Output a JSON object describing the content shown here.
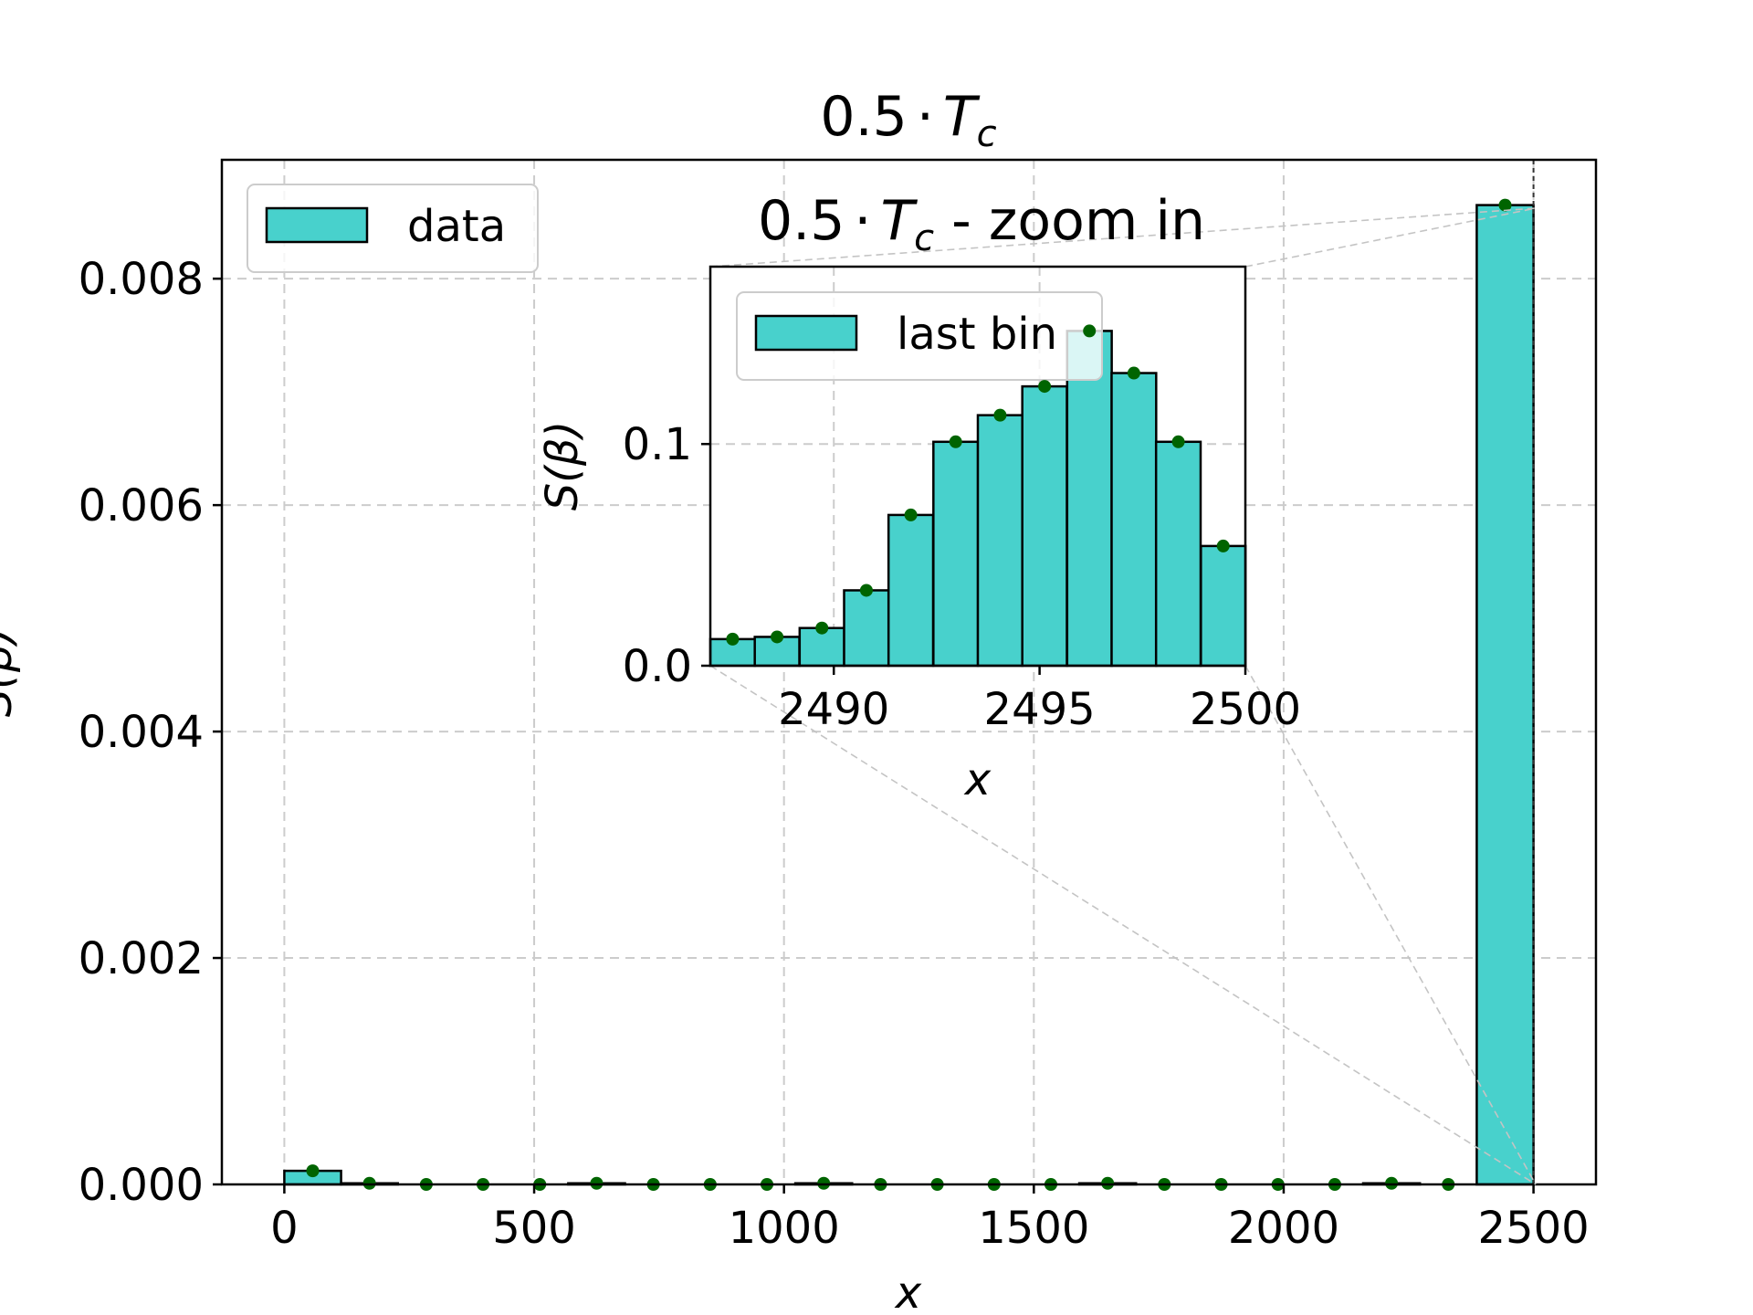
{
  "chart_data": [
    {
      "type": "bar",
      "title": "0.5 · T_c",
      "title_parts": {
        "number": "0.5",
        "dot": "·",
        "symbol": "T",
        "subscript": "c"
      },
      "xlabel": "x",
      "ylabel": "S(β)",
      "xlim": [
        -125,
        2625
      ],
      "ylim": [
        0,
        0.00905
      ],
      "xticks": [
        0,
        500,
        1000,
        1500,
        2000,
        2500
      ],
      "xtick_labels": [
        "0",
        "500",
        "1000",
        "1500",
        "2000",
        "2500"
      ],
      "yticks": [
        0,
        0.002,
        0.004,
        0.006,
        0.008
      ],
      "ytick_labels": [
        "0.000",
        "0.002",
        "0.004",
        "0.006",
        "0.008"
      ],
      "grid": true,
      "legend": {
        "label": "data",
        "position": "upper-left"
      },
      "bar_color": "#48d1cc",
      "edge_color": "#000000",
      "marker_color": "#006400",
      "bin_width": 113.6,
      "bins": [
        {
          "x0": 0,
          "value": 0.00012
        },
        {
          "x0": 113.6,
          "value": 1e-05
        },
        {
          "x0": 227.3,
          "value": 0.0
        },
        {
          "x0": 340.9,
          "value": 0.0
        },
        {
          "x0": 454.5,
          "value": 0.0
        },
        {
          "x0": 568.2,
          "value": 1e-05
        },
        {
          "x0": 681.8,
          "value": 0.0
        },
        {
          "x0": 795.5,
          "value": 0.0
        },
        {
          "x0": 909.1,
          "value": 0.0
        },
        {
          "x0": 1022.7,
          "value": 1e-05
        },
        {
          "x0": 1136.4,
          "value": 0.0
        },
        {
          "x0": 1250.0,
          "value": 0.0
        },
        {
          "x0": 1363.6,
          "value": 0.0
        },
        {
          "x0": 1477.3,
          "value": 0.0
        },
        {
          "x0": 1590.9,
          "value": 1e-05
        },
        {
          "x0": 1704.5,
          "value": 0.0
        },
        {
          "x0": 1818.2,
          "value": 0.0
        },
        {
          "x0": 1931.8,
          "value": 0.0
        },
        {
          "x0": 2045.5,
          "value": 0.0
        },
        {
          "x0": 2159.1,
          "value": 1e-05
        },
        {
          "x0": 2272.7,
          "value": 0.0
        },
        {
          "x0": 2386.4,
          "value": 0.00865
        }
      ]
    },
    {
      "type": "bar",
      "title": "0.5 · T_c - zoom in",
      "title_parts": {
        "number": "0.5",
        "dot": "·",
        "symbol": "T",
        "subscript": "c",
        "suffix": " - zoom in"
      },
      "xlabel": "x",
      "ylabel": "S(β)",
      "xlim": [
        2487,
        2500
      ],
      "ylim": [
        0,
        0.18
      ],
      "xticks": [
        2490,
        2495,
        2500
      ],
      "xtick_labels": [
        "2490",
        "2495",
        "2500"
      ],
      "yticks": [
        0.0,
        0.1
      ],
      "ytick_labels": [
        "0.0",
        "0.1"
      ],
      "grid": true,
      "legend": {
        "label": "last bin",
        "position": "upper-left"
      },
      "bar_color": "#48d1cc",
      "edge_color": "#000000",
      "marker_color": "#006400",
      "bin_width": 1.083,
      "bins": [
        {
          "x0": 2487.0,
          "value": 0.012
        },
        {
          "x0": 2488.08,
          "value": 0.013
        },
        {
          "x0": 2489.17,
          "value": 0.017
        },
        {
          "x0": 2490.25,
          "value": 0.034
        },
        {
          "x0": 2491.33,
          "value": 0.068
        },
        {
          "x0": 2492.42,
          "value": 0.101
        },
        {
          "x0": 2493.5,
          "value": 0.113
        },
        {
          "x0": 2494.58,
          "value": 0.126
        },
        {
          "x0": 2495.67,
          "value": 0.151
        },
        {
          "x0": 2496.75,
          "value": 0.132
        },
        {
          "x0": 2497.83,
          "value": 0.101
        },
        {
          "x0": 2498.92,
          "value": 0.054
        }
      ]
    }
  ]
}
